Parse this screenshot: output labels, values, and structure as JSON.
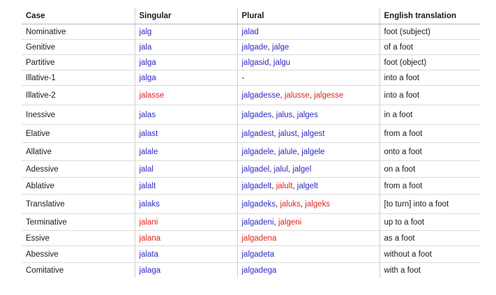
{
  "headers": [
    "Case",
    "Singular",
    "Plural",
    "English translation"
  ],
  "colors": {
    "regular_form": "#2f28c4",
    "irregular_form": "#e0231c",
    "text": "#1a1a1a"
  },
  "rows": [
    {
      "case": "Nominative",
      "singular": {
        "text": "jalg",
        "color": "blue"
      },
      "plural": [
        {
          "text": "jalad",
          "color": "blue"
        }
      ],
      "translation": "foot (subject)"
    },
    {
      "case": "Genitive",
      "singular": {
        "text": "jala",
        "color": "blue"
      },
      "plural": [
        {
          "text": "jalgade",
          "color": "blue"
        },
        {
          "text": "jalge",
          "color": "blue"
        }
      ],
      "translation": "of a foot"
    },
    {
      "case": "Partitive",
      "singular": {
        "text": "jalga",
        "color": "blue"
      },
      "plural": [
        {
          "text": "jalgasid",
          "color": "blue"
        },
        {
          "text": "jalgu",
          "color": "blue"
        }
      ],
      "translation": "foot (object)"
    },
    {
      "case": "Illative-1",
      "singular": {
        "text": "jalga",
        "color": "blue"
      },
      "plural": [
        {
          "text": "-",
          "color": "plain"
        }
      ],
      "translation": "into a foot"
    },
    {
      "case": "Illative-2",
      "singular": {
        "text": "jalasse",
        "color": "red"
      },
      "plural": [
        {
          "text": "jalgadesse",
          "color": "blue"
        },
        {
          "text": "jalusse",
          "color": "red"
        },
        {
          "text": "jalgesse",
          "color": "red"
        }
      ],
      "translation": "into a foot"
    },
    {
      "case": "Inessive",
      "singular": {
        "text": "jalas",
        "color": "blue"
      },
      "plural": [
        {
          "text": "jalgades",
          "color": "blue"
        },
        {
          "text": "jalus",
          "color": "blue"
        },
        {
          "text": "jalges",
          "color": "blue"
        }
      ],
      "translation": "in a foot"
    },
    {
      "case": "Elative",
      "singular": {
        "text": "jalast",
        "color": "blue"
      },
      "plural": [
        {
          "text": "jalgadest",
          "color": "blue"
        },
        {
          "text": "jalust",
          "color": "blue"
        },
        {
          "text": "jalgest",
          "color": "blue"
        }
      ],
      "translation": "from a foot"
    },
    {
      "case": "Allative",
      "singular": {
        "text": "jalale",
        "color": "blue"
      },
      "plural": [
        {
          "text": "jalgadele",
          "color": "blue"
        },
        {
          "text": "jalule",
          "color": "blue"
        },
        {
          "text": "jalgele",
          "color": "blue"
        }
      ],
      "translation": "onto a foot"
    },
    {
      "case": "Adessive",
      "singular": {
        "text": "jalal",
        "color": "blue"
      },
      "plural": [
        {
          "text": "jalgadel",
          "color": "blue"
        },
        {
          "text": "jalul",
          "color": "blue"
        },
        {
          "text": "jalgel",
          "color": "blue"
        }
      ],
      "translation": "on a foot"
    },
    {
      "case": "Ablative",
      "singular": {
        "text": "jalalt",
        "color": "blue"
      },
      "plural": [
        {
          "text": "jalgadelt",
          "color": "blue"
        },
        {
          "text": "jalult",
          "color": "red"
        },
        {
          "text": "jalgelt",
          "color": "blue"
        }
      ],
      "translation": "from a foot"
    },
    {
      "case": "Translative",
      "singular": {
        "text": "jalaks",
        "color": "blue"
      },
      "plural": [
        {
          "text": "jalgadeks",
          "color": "blue"
        },
        {
          "text": "jaluks",
          "color": "red"
        },
        {
          "text": "jalgeks",
          "color": "red"
        }
      ],
      "translation": "[to turn] into a foot"
    },
    {
      "case": "Terminative",
      "singular": {
        "text": "jalani",
        "color": "red"
      },
      "plural": [
        {
          "text": "jalgadeni",
          "color": "blue"
        },
        {
          "text": "jalgeni",
          "color": "red"
        }
      ],
      "translation": "up to a foot"
    },
    {
      "case": "Essive",
      "singular": {
        "text": "jalana",
        "color": "red"
      },
      "plural": [
        {
          "text": "jalgadena",
          "color": "red"
        }
      ],
      "translation": "as a foot"
    },
    {
      "case": "Abessive",
      "singular": {
        "text": "jalata",
        "color": "blue"
      },
      "plural": [
        {
          "text": "jalgadeta",
          "color": "blue"
        }
      ],
      "translation": "without a foot"
    },
    {
      "case": "Comitative",
      "singular": {
        "text": "jalaga",
        "color": "blue"
      },
      "plural": [
        {
          "text": "jalgadega",
          "color": "blue"
        }
      ],
      "translation": "with a foot"
    }
  ]
}
